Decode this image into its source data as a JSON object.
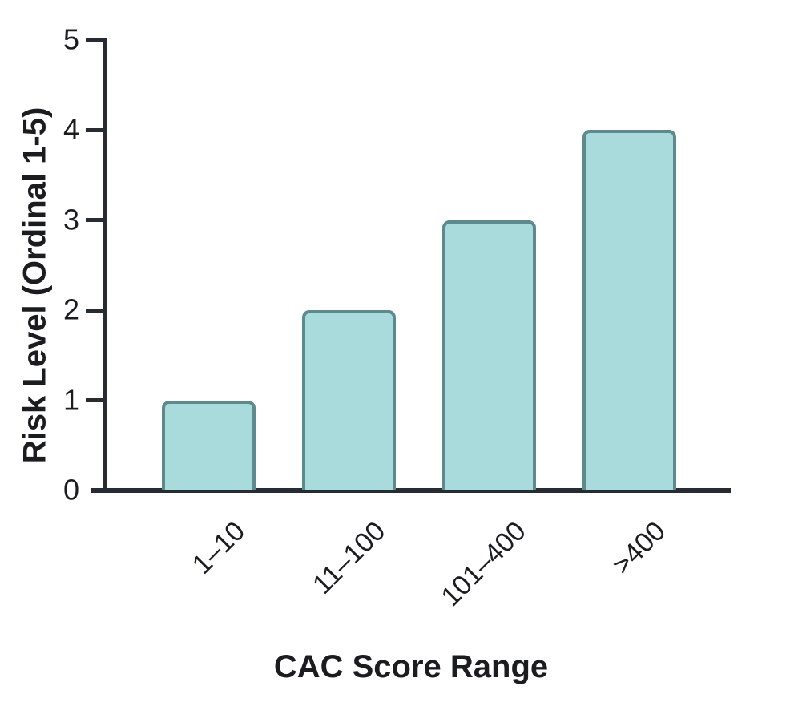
{
  "chart_data": {
    "type": "bar",
    "title": "",
    "categories": [
      "1–10",
      "11–100",
      "101–400",
      ">400"
    ],
    "values": [
      1,
      2,
      3,
      4
    ],
    "xlabel": "CAC Score Range",
    "ylabel": "Risk Level (Ordinal 1-5)",
    "ylim": [
      0,
      5
    ],
    "yticks": [
      0,
      1,
      2,
      3,
      4,
      5
    ],
    "grid": false,
    "legend": false,
    "colors": {
      "bar_fill": "#a9dadc",
      "bar_border": "#5f8a8d",
      "axis": "#272b32",
      "text": "#1a1c1f"
    }
  }
}
